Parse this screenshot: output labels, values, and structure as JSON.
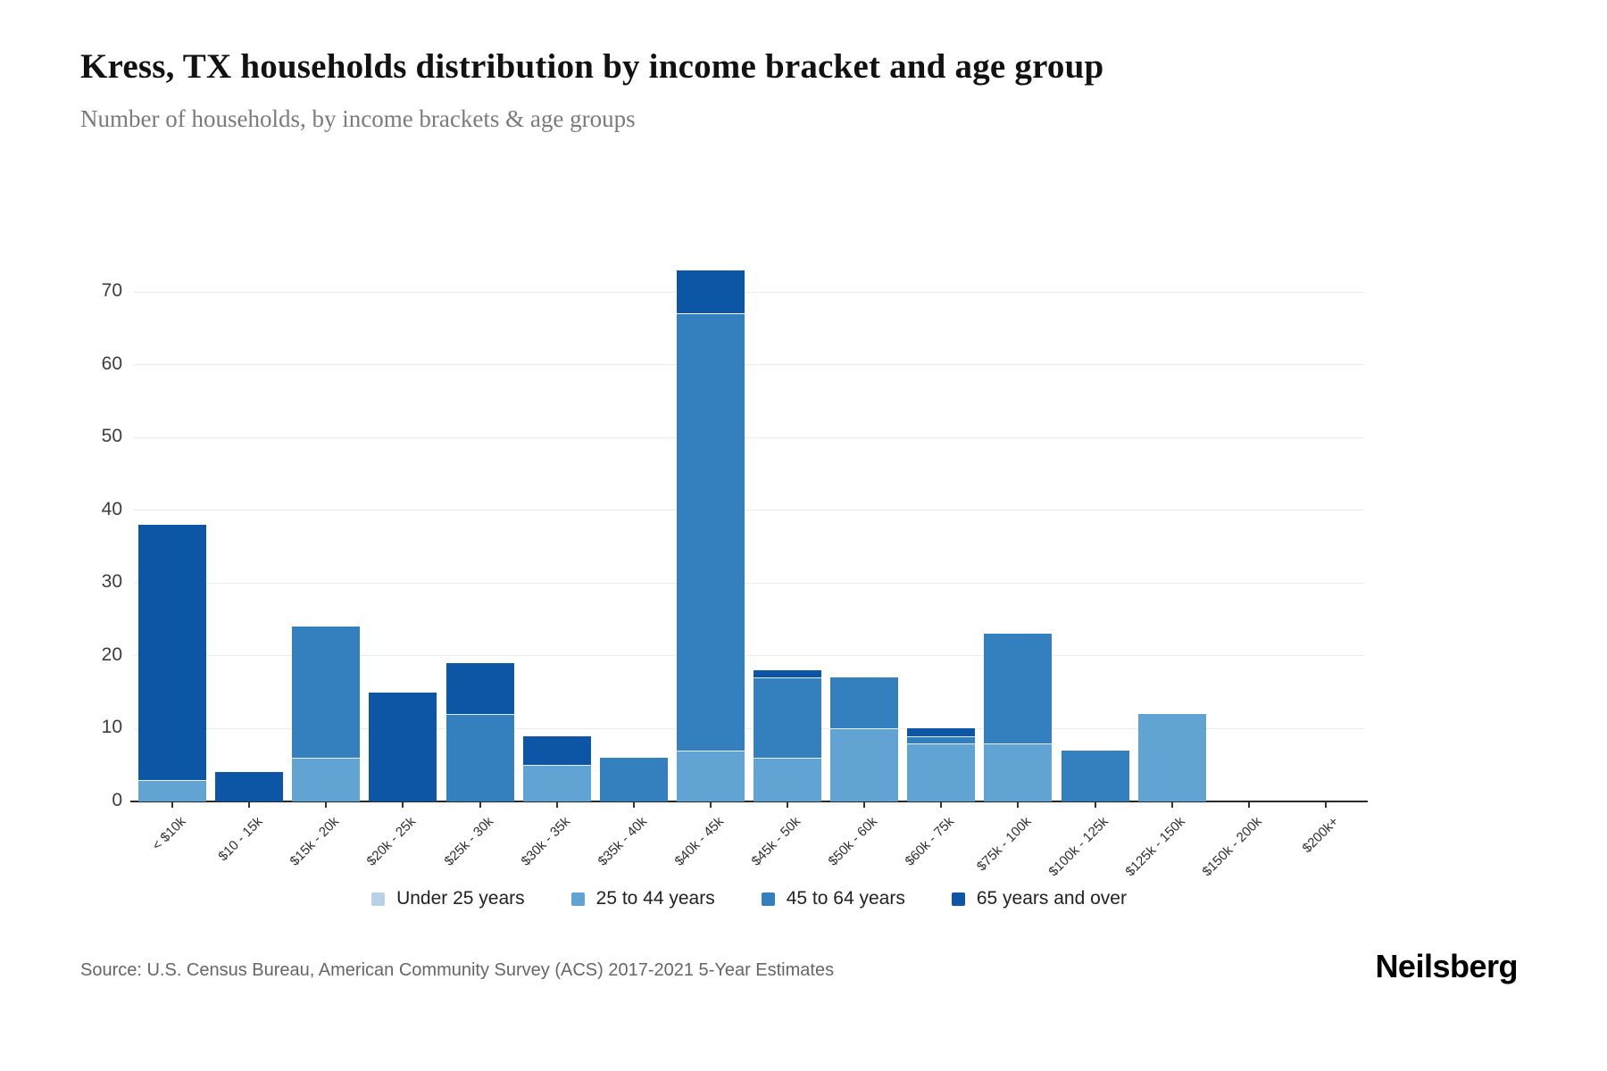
{
  "page": {
    "title": "Kress, TX households distribution by income bracket and age group",
    "subtitle": "Number of households, by income brackets & age groups",
    "source": "Source: U.S. Census Bureau, American Community Survey (ACS) 2017-2021 5-Year Estimates",
    "brand": "Neilsberg"
  },
  "chart_data": {
    "type": "bar",
    "stacked": true,
    "title": "Kress, TX households distribution by income bracket and age group",
    "subtitle": "Number of households, by income brackets & age groups",
    "xlabel": "",
    "ylabel": "Number of households",
    "ylim": [
      0,
      70
    ],
    "yticks": [
      0,
      10,
      20,
      30,
      40,
      50,
      60,
      70
    ],
    "grid": "horizontal",
    "legend_position": "bottom",
    "categories": [
      "< $10k",
      "$10 - 15k",
      "$15k - 20k",
      "$20k - 25k",
      "$25k - 30k",
      "$30k - 35k",
      "$35k - 40k",
      "$40k - 45k",
      "$45k - 50k",
      "$50k - 60k",
      "$60k - 75k",
      "$75k - 100k",
      "$100k - 125k",
      "$125k - 150k",
      "$150k - 200k",
      "$200k+"
    ],
    "series": [
      {
        "name": "Under 25 years",
        "color": "#b7d2e8",
        "values": [
          0,
          0,
          0,
          0,
          0,
          0,
          0,
          0,
          0,
          0,
          0,
          0,
          0,
          0,
          0,
          0
        ]
      },
      {
        "name": "25 to 44 years",
        "color": "#61a4d4",
        "values": [
          3,
          0,
          6,
          0,
          0,
          5,
          0,
          7,
          6,
          10,
          8,
          8,
          0,
          12,
          0,
          0
        ]
      },
      {
        "name": "45 to 64 years",
        "color": "#3480be",
        "values": [
          0,
          0,
          18,
          0,
          12,
          0,
          6,
          60,
          11,
          7,
          1,
          15,
          7,
          0,
          0,
          0
        ]
      },
      {
        "name": "65 years and over",
        "color": "#0c56a5",
        "values": [
          35,
          4,
          0,
          15,
          7,
          4,
          0,
          6,
          1,
          0,
          1,
          0,
          0,
          0,
          0,
          0
        ]
      }
    ],
    "bar_totals": [
      38,
      4,
      24,
      15,
      19,
      9,
      6,
      73,
      18,
      17,
      10,
      23,
      7,
      12,
      0,
      0
    ],
    "colors": {
      "gridline": "#ececec",
      "axis_line": "#26282b",
      "tick_label": "#3c3c3c",
      "title": "#121212",
      "subtitle": "#7b7b7b"
    }
  }
}
